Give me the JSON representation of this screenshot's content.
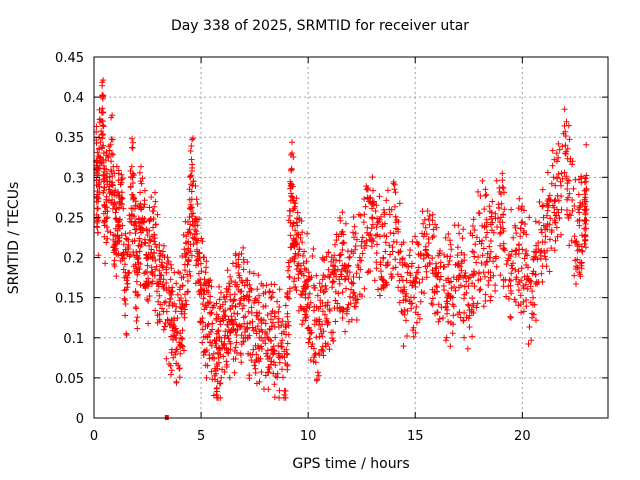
{
  "chart_data": {
    "type": "scatter",
    "title": "Day 338 of 2025, SRMTID for receiver utar",
    "xlabel": "GPS time / hours",
    "ylabel": "SRMTID / TECUs",
    "xlim": [
      0,
      24
    ],
    "ylim": [
      0,
      0.45
    ],
    "xticks": [
      0,
      5,
      10,
      15,
      20
    ],
    "yticks": [
      0,
      0.05,
      0.1,
      0.15,
      0.2,
      0.25,
      0.3,
      0.35,
      0.4,
      0.45
    ],
    "x_tick_labels": [
      "0",
      "5",
      "10",
      "15",
      "20"
    ],
    "y_tick_labels": [
      "0",
      "0.05",
      "0.1",
      "0.15",
      "0.2",
      "0.25",
      "0.3",
      "0.35",
      "0.4",
      "0.45"
    ],
    "grid": true,
    "marker": "+",
    "marker_color": "#ff0000",
    "series": [
      {
        "name": "SRMTID",
        "x": [
          0.1,
          0.2,
          0.4,
          0.5,
          0.8,
          1.0,
          1.2,
          1.5,
          1.8,
          2.0,
          2.2,
          2.5,
          2.8,
          3.1,
          3.5,
          3.8,
          4.1,
          4.4,
          4.6,
          4.9,
          5.2,
          5.5,
          5.8,
          6.1,
          6.4,
          6.7,
          7.0,
          7.4,
          7.8,
          8.2,
          8.6,
          9.0,
          9.2,
          9.4,
          9.7,
          10.0,
          10.4,
          10.8,
          11.2,
          11.6,
          12.0,
          12.5,
          13.0,
          13.5,
          14.0,
          14.5,
          15.0,
          15.5,
          16.0,
          16.5,
          17.0,
          17.5,
          18.0,
          18.5,
          19.0,
          19.5,
          20.0,
          20.5,
          21.0,
          21.5,
          22.0,
          22.5,
          22.9
        ],
        "y": [
          0.31,
          0.27,
          0.4,
          0.24,
          0.32,
          0.22,
          0.27,
          0.16,
          0.3,
          0.17,
          0.26,
          0.19,
          0.22,
          0.17,
          0.14,
          0.1,
          0.13,
          0.22,
          0.29,
          0.18,
          0.14,
          0.09,
          0.08,
          0.1,
          0.12,
          0.13,
          0.14,
          0.12,
          0.1,
          0.11,
          0.09,
          0.08,
          0.28,
          0.22,
          0.18,
          0.15,
          0.12,
          0.14,
          0.17,
          0.19,
          0.16,
          0.22,
          0.25,
          0.2,
          0.23,
          0.16,
          0.17,
          0.21,
          0.18,
          0.15,
          0.19,
          0.14,
          0.22,
          0.2,
          0.25,
          0.19,
          0.21,
          0.15,
          0.24,
          0.27,
          0.33,
          0.22,
          0.26
        ]
      }
    ],
    "annotations": [
      {
        "x": 3.4,
        "y": 0.0,
        "text": ""
      }
    ]
  }
}
